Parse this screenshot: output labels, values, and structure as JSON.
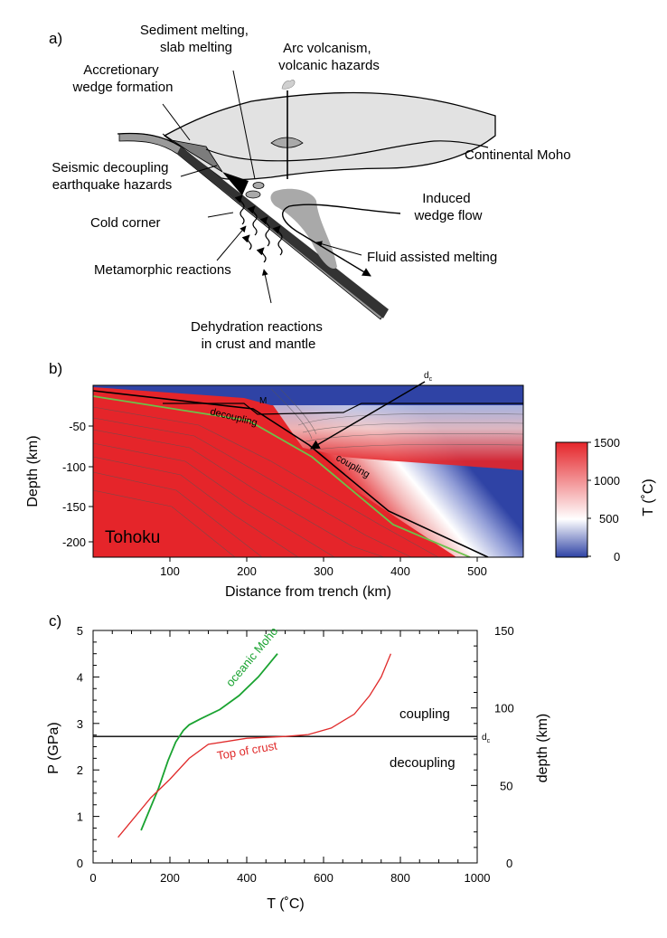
{
  "panel_a": {
    "letter": "a)",
    "labels": {
      "sediment_melting": [
        "Sediment melting,",
        "slab melting"
      ],
      "arc_volcanism": [
        "Arc volcanism,",
        "volcanic hazards"
      ],
      "accretionary_wedge": [
        "Accretionary",
        "wedge formation"
      ],
      "continental_moho": "Continental Moho",
      "seismic_decoupling": [
        "Seismic decoupling",
        "earthquake hazards"
      ],
      "induced_flow": [
        "Induced",
        "wedge flow"
      ],
      "cold_corner": "Cold corner",
      "fluid_melting": "Fluid assisted melting",
      "metamorphic": "Metamorphic reactions",
      "dehydration": [
        "Dehydration reactions",
        "in crust and mantle"
      ]
    },
    "colors": {
      "continent": "#e2e2e2",
      "slab_top": "#888888",
      "slab": "#222222",
      "melt": "#a9a9a9"
    }
  },
  "panel_b": {
    "letter": "b)",
    "location_label": "Tohoku",
    "labels": {
      "moho": "M",
      "decoupling": "decoupling",
      "coupling": "coupling",
      "dc_main": "d",
      "dc_sub": "c"
    },
    "xlabel": "Distance from trench (km)",
    "ylabel": "Depth (km)",
    "x_ticks": [
      "100",
      "200",
      "300",
      "400",
      "500"
    ],
    "y_ticks": [
      "-50",
      "-100",
      "-150",
      "-200"
    ],
    "xlim": [
      0,
      560
    ],
    "ylim": [
      -220,
      -7
    ],
    "colorbar": {
      "label": "T (˚C)",
      "ticks": [
        "1500",
        "1000",
        "500",
        "0"
      ],
      "range": [
        0,
        1500
      ]
    },
    "colors": {
      "cold": "#2f43a5",
      "neutral": "#ffffff",
      "hot": "#e5252a",
      "moho_line": "#6cc24a"
    }
  },
  "chart_data": {
    "type": "line",
    "xlabel": "T (˚C)",
    "ylabel": "P (GPa)",
    "y2label": "depth (km)",
    "xlim": [
      0,
      1000
    ],
    "ylim": [
      0,
      5
    ],
    "y2lim": [
      0,
      150
    ],
    "x_ticks": [
      "0",
      "200",
      "400",
      "600",
      "800",
      "1000"
    ],
    "y_ticks": [
      "0",
      "1",
      "2",
      "3",
      "4",
      "5"
    ],
    "y2_ticks": [
      "0",
      "50",
      "100",
      "150"
    ],
    "grid": false,
    "series": [
      {
        "name": "oceanic Moho",
        "color": "#1aa331",
        "x": [
          125,
          145,
          170,
          195,
          215,
          235,
          250,
          280,
          330,
          380,
          430,
          480
        ],
        "y": [
          0.7,
          1.1,
          1.6,
          2.2,
          2.6,
          2.85,
          2.97,
          3.1,
          3.3,
          3.6,
          4.0,
          4.5
        ]
      },
      {
        "name": "Top of crust",
        "color": "#e02a2a",
        "x": [
          65,
          100,
          150,
          200,
          250,
          300,
          400,
          500,
          560,
          620,
          680,
          720,
          750,
          775
        ],
        "y": [
          0.55,
          0.9,
          1.4,
          1.8,
          2.25,
          2.55,
          2.68,
          2.72,
          2.76,
          2.9,
          3.2,
          3.6,
          4.0,
          4.5
        ]
      }
    ],
    "hline": {
      "y": 2.72,
      "label_main": "d",
      "label_sub": "c"
    },
    "region_labels": {
      "above": "coupling",
      "below": "decoupling"
    },
    "panel_letter": "c)"
  }
}
